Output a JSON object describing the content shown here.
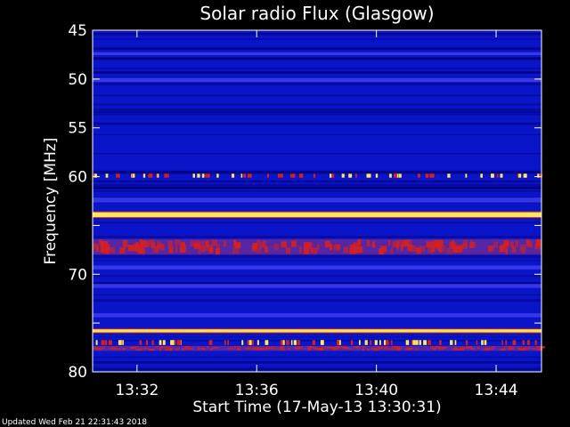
{
  "chart_data": {
    "type": "heatmap",
    "title": "Solar radio Flux (Glasgow)",
    "xlabel": "Start Time (17-May-13 13:30:31)",
    "ylabel": "Frequency [MHz]",
    "x_range": [
      "13:30:31",
      "13:45:31"
    ],
    "xticks": [
      {
        "t": "13:32",
        "label": "13:32"
      },
      {
        "t": "13:36",
        "label": "13:36"
      },
      {
        "t": "13:40",
        "label": "13:40"
      },
      {
        "t": "13:44",
        "label": "13:44"
      }
    ],
    "ylim": [
      45,
      80
    ],
    "y_inverted": true,
    "yticks": [
      45,
      50,
      55,
      60,
      65,
      70,
      75,
      80
    ],
    "ytick_labels": [
      "45",
      "50",
      "55",
      "60",
      "",
      "70",
      "",
      "80"
    ],
    "background_level": "low",
    "bands": [
      {
        "mhz": 47.4,
        "width": 0.3,
        "level": "elevated"
      },
      {
        "mhz": 50.1,
        "width": 0.4,
        "level": "elevated"
      },
      {
        "mhz": 59.9,
        "width": 0.4,
        "level": "high",
        "intermittent": true
      },
      {
        "mhz": 62.4,
        "width": 0.5,
        "level": "elevated"
      },
      {
        "mhz": 63.9,
        "width": 0.5,
        "level": "saturated"
      },
      {
        "mhz": 67.2,
        "width": 1.6,
        "level": "high"
      },
      {
        "mhz": 69.3,
        "width": 0.4,
        "level": "elevated"
      },
      {
        "mhz": 71.2,
        "width": 0.4,
        "level": "elevated"
      },
      {
        "mhz": 74.2,
        "width": 0.4,
        "level": "elevated"
      },
      {
        "mhz": 75.8,
        "width": 0.3,
        "level": "saturated"
      },
      {
        "mhz": 77.0,
        "width": 0.5,
        "level": "high",
        "intermittent": true
      },
      {
        "mhz": 77.6,
        "width": 0.5,
        "level": "high"
      }
    ],
    "colors": {
      "background": "#000000",
      "low": "#0a14c8",
      "elevated": "#3c3cf0",
      "high": "#d42020",
      "saturated": "#ffe860",
      "axes": "#ffffff"
    }
  },
  "footer": {
    "updated": "Updated Wed Feb 21 22:31:43 2018"
  }
}
